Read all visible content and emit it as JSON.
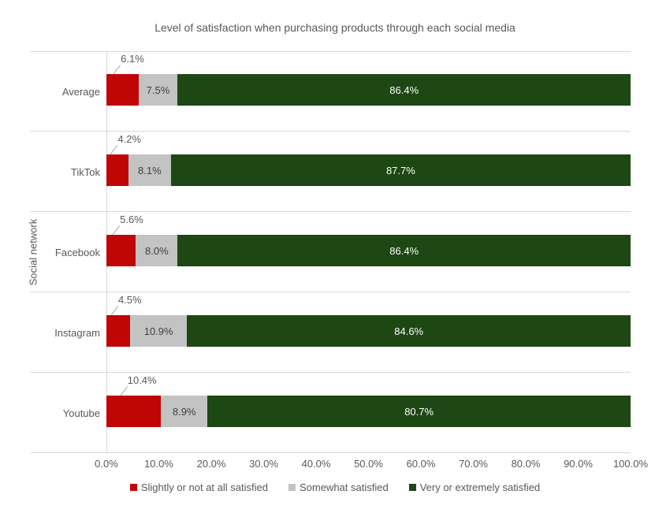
{
  "chart_data": {
    "type": "bar",
    "variant": "horizontal-stacked",
    "title": "Level of satisfaction when purchasing products through each social media",
    "ylabel": "Social network",
    "xlabel": "",
    "categories": [
      "Average",
      "TikTok",
      "Facebook",
      "Instagram",
      "Youtube"
    ],
    "series": [
      {
        "name": "Slightly or not at all satisfied",
        "color": "#C00505",
        "values": [
          6.1,
          4.2,
          5.6,
          4.5,
          10.4
        ],
        "label_placement": "callout-above"
      },
      {
        "name": "Somewhat satisfied",
        "color": "#C3C3C3",
        "values": [
          7.5,
          8.1,
          8.0,
          10.9,
          8.9
        ],
        "label_placement": "inside"
      },
      {
        "name": "Very or extremely satisfied",
        "color": "#1D4713",
        "values": [
          86.4,
          87.7,
          86.4,
          84.6,
          80.7
        ],
        "label_placement": "inside"
      }
    ],
    "value_label_suffix": "%",
    "x_ticks": [
      "0.0%",
      "10.0%",
      "20.0%",
      "30.0%",
      "40.0%",
      "50.0%",
      "60.0%",
      "70.0%",
      "80.0%",
      "90.0%",
      "100.0%"
    ],
    "xlim": [
      0,
      100
    ],
    "grid": "row-separators",
    "legend_position": "bottom"
  },
  "colors": {
    "text": "#595959",
    "grid_line": "#D9D9D9",
    "axis_line": "#D9D9D9",
    "leader_line": "#A6A6A6",
    "label_inside_somewhat": "#404040",
    "label_inside_very": "#FFFFFF"
  }
}
